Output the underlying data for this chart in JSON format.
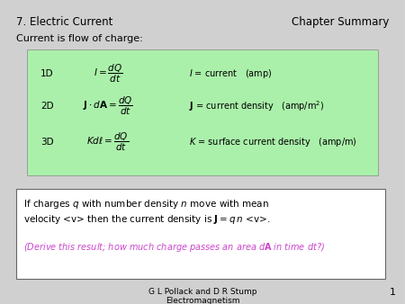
{
  "bg_color": "#d0d0d0",
  "title_left": "7. Electric Current",
  "title_right": "Chapter Summary",
  "subtitle": "Current is flow of charge:",
  "green_box_color": "#aaf0aa",
  "white_box_color": "#ffffff",
  "footer_line1": "G L Pollack and D R Stump",
  "footer_line2": "Electromagnetism",
  "page_num": "1",
  "rows": [
    {
      "dim": "1D",
      "formula": "$I = \\dfrac{dQ}{dt}$",
      "desc": "$I$ = current   (amp)"
    },
    {
      "dim": "2D",
      "formula": "$\\mathbf{J} \\cdot d\\mathbf{A} = \\dfrac{dQ}{dt}$",
      "desc": "$\\mathbf{J}$ = current density   (amp/m$^2$)"
    },
    {
      "dim": "3D",
      "formula": "$Kd\\ell = \\dfrac{dQ}{dt}$",
      "desc": "$K$ = surface current density   (amp/m)"
    }
  ],
  "box2_line1": "If charges $q$ with number density $n$ move with mean",
  "box2_line2": "velocity <v> then the current density is $\\mathbf{J} = q\\,n$ <v>.",
  "box2_line3": "(Derive this result; how much charge passes an area $d\\mathbf{A}$ in time $dt$?)",
  "magenta_color": "#cc44cc"
}
